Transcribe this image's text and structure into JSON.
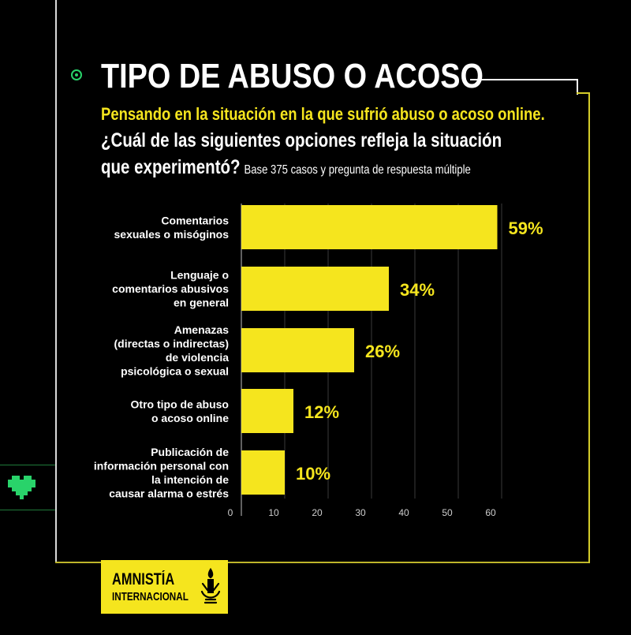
{
  "title": "TIPO DE ABUSO O ACOSO",
  "subtitle": "Pensando en la situación en la que sufrió abuso o acoso online.",
  "question_line1": "¿Cuál de las siguientes opciones refleja la situación",
  "question_line2": "que experimentó?",
  "base_note": "Base 375 casos y pregunta de respuesta múltiple",
  "colors": {
    "accent_yellow": "#f5e51e",
    "background": "#000000",
    "green": "#29d36a"
  },
  "chart_data": {
    "type": "bar",
    "orientation": "horizontal",
    "categories": [
      [
        "Comentarios",
        "sexuales o misóginos"
      ],
      [
        "Lenguaje o",
        "comentarios abusivos",
        "en general"
      ],
      [
        "Amenazas",
        "(directas o indirectas)",
        "de violencia",
        "psicológica o sexual"
      ],
      [
        "Otro tipo de abuso",
        "o acoso online"
      ],
      [
        "Publicación de",
        "información personal con",
        "la intención de",
        "causar alarma o estrés"
      ]
    ],
    "values": [
      59,
      34,
      26,
      12,
      10
    ],
    "value_labels": [
      "59%",
      "34%",
      "26%",
      "12%",
      "10%"
    ],
    "xlim": [
      0,
      60
    ],
    "xticks": [
      0,
      10,
      20,
      30,
      40,
      50,
      60
    ],
    "grid": true
  },
  "logo": {
    "line1": "AMNISTÍA",
    "line2": "INTERNACIONAL",
    "icon": "candle-icon"
  },
  "decor": {
    "heart_icon": "pixel-heart-icon",
    "bullet_icon": "target-bullet-icon"
  }
}
